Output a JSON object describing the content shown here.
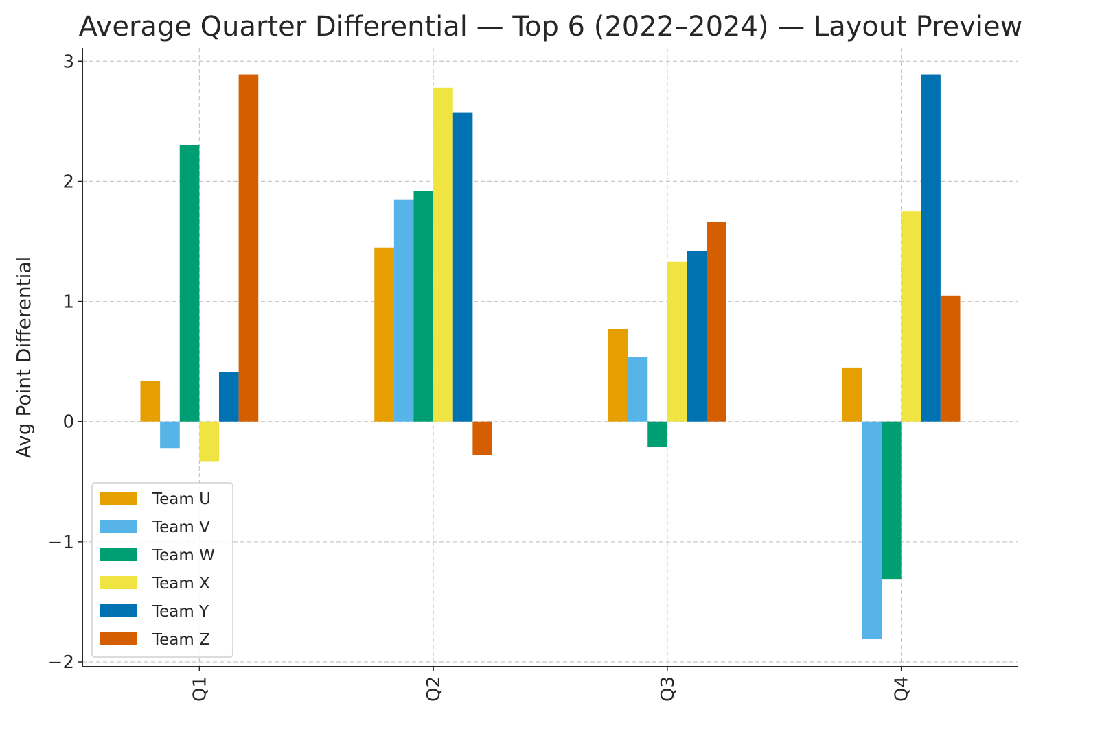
{
  "chart_data": {
    "type": "bar",
    "title": "Average Quarter Differential — Top 6 (2022–2024) — Layout Preview",
    "xlabel": "",
    "ylabel": "Avg Point Differential",
    "categories": [
      "Q1",
      "Q2",
      "Q3",
      "Q4"
    ],
    "ylim": [
      -2.04,
      3.11
    ],
    "yticks": [
      -2,
      -1,
      0,
      1,
      2,
      3
    ],
    "ytick_labels": [
      "−2",
      "−1",
      "0",
      "1",
      "2",
      "3"
    ],
    "grid": true,
    "legend_placement": "lower-left",
    "series": [
      {
        "name": "Team U",
        "color": "#E69F00",
        "values": [
          0.34,
          1.45,
          0.77,
          0.45
        ]
      },
      {
        "name": "Team V",
        "color": "#56B4E9",
        "values": [
          -0.22,
          1.85,
          0.54,
          -1.81
        ]
      },
      {
        "name": "Team W",
        "color": "#009E73",
        "values": [
          2.3,
          1.92,
          -0.21,
          -1.31
        ]
      },
      {
        "name": "Team X",
        "color": "#F0E442",
        "values": [
          -0.33,
          2.78,
          1.33,
          1.75
        ]
      },
      {
        "name": "Team Y",
        "color": "#0072B2",
        "values": [
          0.41,
          2.57,
          1.42,
          2.89
        ]
      },
      {
        "name": "Team Z",
        "color": "#D55E00",
        "values": [
          2.89,
          -0.28,
          1.66,
          1.05
        ]
      }
    ]
  }
}
